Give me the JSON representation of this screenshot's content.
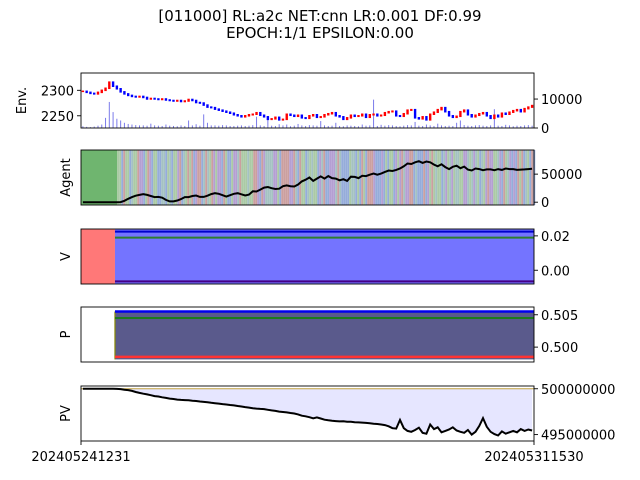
{
  "title": {
    "line1": "[011000] RL:a2c NET:cnn LR:0.001 DF:0.99",
    "line2": "EPOCH:1/1 EPSILON:0.00"
  },
  "xaxis": {
    "start_label": "202405241231",
    "end_label": "202405311530"
  },
  "colors": {
    "price_up": "#ff0000",
    "price_down": "#0000ff",
    "volume": "#7b7bea",
    "agent_hold": "#6fb56f",
    "agent_mix": [
      "#8fa8d8",
      "#c89a9a",
      "#a7c7a0",
      "#b09ad0",
      "#9fbfbf"
    ],
    "value_red": "#ff7878",
    "value_blue": "#7474ff",
    "value_green": "#2e7d2e",
    "policy_fill": "#5a5a8c",
    "policy_red": "#ff3333",
    "policy_blue": "#0000ee",
    "policy_green": "#1c7a1c",
    "pv_fill": "#e6e6ff",
    "line": "#000000"
  },
  "chart_data": [
    {
      "type": "line",
      "panel": "env",
      "ylabel": "Env.",
      "left_ticks": [
        {
          "value": 2300,
          "label": "2300"
        },
        {
          "value": 2250,
          "label": "2250"
        }
      ],
      "right_ticks": [
        {
          "value": 10000,
          "label": "10000"
        },
        {
          "value": 0,
          "label": "0"
        }
      ],
      "ylim": [
        2226,
        2334
      ],
      "ylim_volume": [
        0,
        19000
      ],
      "price": [
        2298,
        2296,
        2294,
        2293,
        2296,
        2300,
        2304,
        2316,
        2308,
        2303,
        2297,
        2293,
        2290,
        2288,
        2287,
        2288,
        2286,
        2283,
        2284,
        2283,
        2282,
        2283,
        2281,
        2280,
        2279,
        2280,
        2278,
        2279,
        2282,
        2280,
        2276,
        2275,
        2271,
        2267,
        2266,
        2263,
        2261,
        2259,
        2257,
        2255,
        2252,
        2250,
        2248,
        2250,
        2252,
        2253,
        2256,
        2251,
        2248,
        2243,
        2244,
        2247,
        2242,
        2243,
        2253,
        2251,
        2249,
        2251,
        2246,
        2245,
        2250,
        2252,
        2247,
        2248,
        2252,
        2254,
        2256,
        2250,
        2248,
        2243,
        2246,
        2251,
        2249,
        2250,
        2253,
        2247,
        2252,
        2253,
        2250,
        2251,
        2256,
        2258,
        2259,
        2250,
        2249,
        2254,
        2261,
        2262,
        2246,
        2244,
        2248,
        2242,
        2253,
        2257,
        2262,
        2266,
        2258,
        2250,
        2247,
        2249,
        2258,
        2261,
        2252,
        2248,
        2251,
        2254,
        2256,
        2250,
        2245,
        2251,
        2248,
        2255,
        2253,
        2257,
        2260,
        2262,
        2258,
        2264,
        2267,
        2270
      ],
      "volume": [
        600,
        400,
        300,
        500,
        800,
        1200,
        3500,
        9000,
        5500,
        3200,
        2600,
        1800,
        1400,
        1200,
        1000,
        900,
        900,
        800,
        1500,
        900,
        800,
        700,
        1200,
        800,
        700,
        600,
        900,
        700,
        2600,
        900,
        1300,
        800,
        4700,
        1800,
        900,
        900,
        800,
        1000,
        900,
        700,
        700,
        800,
        900,
        700,
        800,
        1000,
        3900,
        900,
        700,
        3200,
        800,
        700,
        1300,
        900,
        1200,
        600,
        800,
        1400,
        900,
        700,
        1000,
        900,
        800,
        2400,
        900,
        700,
        800,
        1800,
        700,
        600,
        900,
        800,
        700,
        600,
        1200,
        800,
        900,
        9800,
        700,
        1100,
        800,
        1000,
        900,
        700,
        600,
        800,
        1000,
        900,
        2100,
        800,
        700,
        1200,
        900,
        700,
        1500,
        900,
        700,
        800,
        700,
        1800,
        2600,
        1000,
        800,
        700,
        900,
        1000,
        800,
        700,
        900,
        6500,
        800,
        700,
        1100,
        900,
        600,
        800,
        700,
        900,
        1000,
        800
      ]
    },
    {
      "type": "area",
      "panel": "agent",
      "ylabel": "Agent",
      "right_ticks": [
        {
          "value": 50000,
          "label": "50000"
        },
        {
          "value": 0,
          "label": "0"
        }
      ],
      "ylim": [
        -5000,
        93000
      ],
      "hold_until": 0.08,
      "balance": [
        0,
        0,
        0,
        0,
        0,
        0,
        0,
        0,
        0,
        0,
        200,
        2500,
        6000,
        9000,
        11500,
        13000,
        14500,
        13000,
        11000,
        9000,
        9500,
        8000,
        4000,
        1500,
        1500,
        3000,
        5500,
        9000,
        9000,
        11000,
        12000,
        9500,
        9500,
        11500,
        14500,
        16000,
        15000,
        12500,
        10000,
        12500,
        15000,
        16000,
        14000,
        12000,
        13500,
        19500,
        19000,
        22500,
        26000,
        27000,
        25000,
        23500,
        24000,
        28500,
        30000,
        28500,
        28000,
        31500,
        37000,
        40000,
        44000,
        38000,
        42000,
        46000,
        42000,
        46500,
        43000,
        42000,
        39000,
        41000,
        38000,
        45500,
        45000,
        43000,
        47000,
        46500,
        49000,
        51000,
        49000,
        51000,
        54000,
        56500,
        55500,
        57500,
        60000,
        64000,
        69000,
        68000,
        71000,
        73000,
        70000,
        72500,
        71000,
        67000,
        64000,
        67500,
        62500,
        59000,
        63000,
        65000,
        60500,
        63500,
        58000,
        56500,
        60000,
        59000,
        57000,
        58500,
        58500,
        57000,
        59000,
        57500,
        60000,
        59000,
        59000,
        57500,
        58000,
        58500,
        59000,
        59500
      ]
    },
    {
      "type": "area",
      "panel": "value",
      "ylabel": "V",
      "right_ticks": [
        {
          "value": 0.02,
          "label": "0.02"
        },
        {
          "value": 0.0,
          "label": "0.00"
        }
      ],
      "ylim": [
        -0.008,
        0.024
      ],
      "red_until": 0.075,
      "upper": 0.0225,
      "middle": 0.019,
      "lower": -0.0065
    },
    {
      "type": "area",
      "panel": "policy",
      "ylabel": "P",
      "right_ticks": [
        {
          "value": 0.505,
          "label": "0.505"
        },
        {
          "value": 0.5,
          "label": "0.500"
        }
      ],
      "ylim": [
        0.4977,
        0.5062
      ],
      "start_at": 0.075,
      "upper": 0.5055,
      "green": 0.5045,
      "red": 0.4985,
      "lower": 0.4981
    },
    {
      "type": "line",
      "panel": "pv",
      "ylabel": "PV",
      "right_ticks": [
        {
          "value": 500000000,
          "label": "500000000"
        },
        {
          "value": 495000000,
          "label": "495000000"
        }
      ],
      "ylim": [
        494300000,
        500300000
      ],
      "pv": [
        500000000,
        500000000,
        500000000,
        500000000,
        500000000,
        500000000,
        500000000,
        500000000,
        500000000,
        499980000,
        499960000,
        499900000,
        499850000,
        499760000,
        499650000,
        499550000,
        499460000,
        499380000,
        499300000,
        499200000,
        499150000,
        499070000,
        499000000,
        498930000,
        498880000,
        498820000,
        498780000,
        498760000,
        498740000,
        498700000,
        498660000,
        498610000,
        498560000,
        498520000,
        498470000,
        498420000,
        498380000,
        498320000,
        498280000,
        498230000,
        498180000,
        498120000,
        498060000,
        498000000,
        497940000,
        497880000,
        497830000,
        497800000,
        497780000,
        497700000,
        497640000,
        497580000,
        497510000,
        497460000,
        497420000,
        497350000,
        497300000,
        497200000,
        497060000,
        496990000,
        496900000,
        496780000,
        496880000,
        496750000,
        496620000,
        496560000,
        496500000,
        496470000,
        496440000,
        496450000,
        496400000,
        496390000,
        496350000,
        496330000,
        496310000,
        496280000,
        496240000,
        496190000,
        496150000,
        496100000,
        496040000,
        495900000,
        495700000,
        495650000,
        496600000,
        495700000,
        495400000,
        495300000,
        495500000,
        495750000,
        495200000,
        495100000,
        496100000,
        495600000,
        495800000,
        495250000,
        495400000,
        495550000,
        495800000,
        495450000,
        495300000,
        495200000,
        495500000,
        495000000,
        495300000,
        495950000,
        496800000,
        495850000,
        495300000,
        495050000,
        494900000,
        495350000,
        495100000,
        495250000,
        495400000,
        495250000,
        495600000,
        495400000,
        495550000,
        495450000
      ]
    }
  ]
}
